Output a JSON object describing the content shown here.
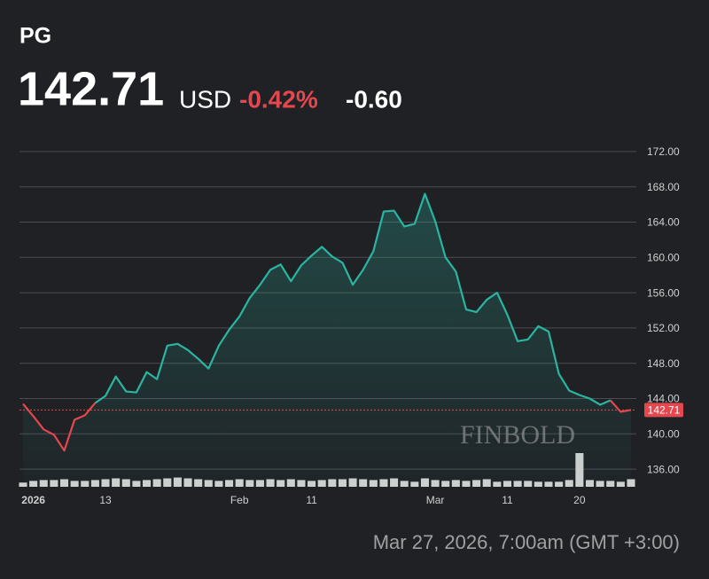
{
  "header": {
    "ticker": "PG",
    "price": "142.71",
    "currency": "USD",
    "change_percent": "-0.42%",
    "change": "-0.60"
  },
  "timestamp": "Mar 27, 2026, 7:00am (GMT +3:00)",
  "chart_data": {
    "type": "line",
    "watermark": "FINBOLD",
    "ylim": [
      134,
      174
    ],
    "yticks": [
      {
        "value": 136,
        "label": "136.00"
      },
      {
        "value": 140,
        "label": "140.00"
      },
      {
        "value": 144,
        "label": "144.00"
      },
      {
        "value": 148,
        "label": "148.00"
      },
      {
        "value": 152,
        "label": "152.00"
      },
      {
        "value": 156,
        "label": "156.00"
      },
      {
        "value": 160,
        "label": "160.00"
      },
      {
        "value": 164,
        "label": "164.00"
      },
      {
        "value": 168,
        "label": "168.00"
      },
      {
        "value": 172,
        "label": "172.00"
      }
    ],
    "grid": true,
    "xlim": [
      0,
      59
    ],
    "xticks": [
      {
        "value": 1,
        "label": "2026"
      },
      {
        "value": 8,
        "label": "13"
      },
      {
        "value": 21,
        "label": "Feb"
      },
      {
        "value": 28,
        "label": "11"
      },
      {
        "value": 40,
        "label": "Mar"
      },
      {
        "value": 47,
        "label": "11"
      },
      {
        "value": 54,
        "label": "20"
      }
    ],
    "current_price": 142.71,
    "up_color": "#2bb5a0",
    "down_color": "#e5474e",
    "volume_color": "#d0d0d0",
    "values": [
      143.4,
      142.0,
      140.5,
      139.9,
      138.1,
      141.6,
      142.1,
      143.5,
      144.3,
      146.5,
      144.8,
      144.7,
      147.0,
      146.2,
      150.0,
      150.2,
      149.5,
      148.5,
      147.4,
      150.0,
      151.8,
      153.3,
      155.4,
      156.9,
      158.6,
      159.2,
      157.3,
      159.1,
      160.2,
      161.2,
      160.1,
      159.4,
      156.9,
      158.6,
      160.7,
      165.2,
      165.3,
      163.5,
      163.8,
      167.2,
      164.1,
      160.0,
      158.4,
      154.1,
      153.8,
      155.2,
      156.0,
      153.5,
      150.5,
      150.7,
      152.2,
      151.6,
      146.8,
      144.9,
      144.4,
      144.0,
      143.3,
      143.8,
      142.5,
      142.71
    ],
    "volumes": [
      5,
      7,
      8,
      8,
      9,
      7,
      7,
      8,
      9,
      10,
      9,
      7,
      8,
      9,
      10,
      11,
      10,
      9,
      8,
      7,
      8,
      9,
      8,
      8,
      9,
      8,
      9,
      8,
      7,
      8,
      9,
      9,
      10,
      9,
      8,
      9,
      10,
      7,
      6,
      10,
      8,
      7,
      8,
      7,
      8,
      9,
      6,
      7,
      7,
      7,
      6,
      6,
      6,
      8,
      40,
      8,
      7,
      7,
      6,
      9
    ]
  }
}
